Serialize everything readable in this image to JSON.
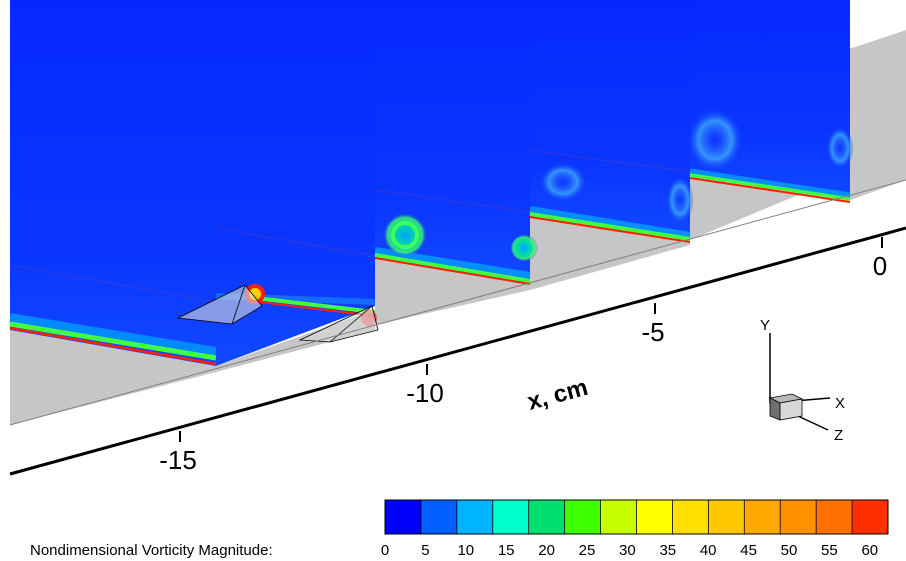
{
  "x_axis": {
    "title": "x, cm",
    "ticks": [
      "-15",
      "-10",
      "-5",
      "0"
    ]
  },
  "triad": {
    "x_label": "X",
    "y_label": "Y",
    "z_label": "Z"
  },
  "colorbar": {
    "title": "Nondimensional Vorticity Magnitude:",
    "ticks": [
      "0",
      "5",
      "10",
      "15",
      "20",
      "25",
      "30",
      "35",
      "40",
      "45",
      "50",
      "55",
      "60"
    ],
    "colors": [
      "#0000ff",
      "#0060ff",
      "#00b4ff",
      "#00ffcc",
      "#00e070",
      "#40ff00",
      "#c8ff00",
      "#ffff00",
      "#ffe000",
      "#ffc800",
      "#ffa800",
      "#ff9000",
      "#ff7000",
      "#ff3000"
    ]
  },
  "colors": {
    "wall": "#c6c6c6",
    "plane_background": "#0a30ff",
    "axis_line": "#000000"
  }
}
